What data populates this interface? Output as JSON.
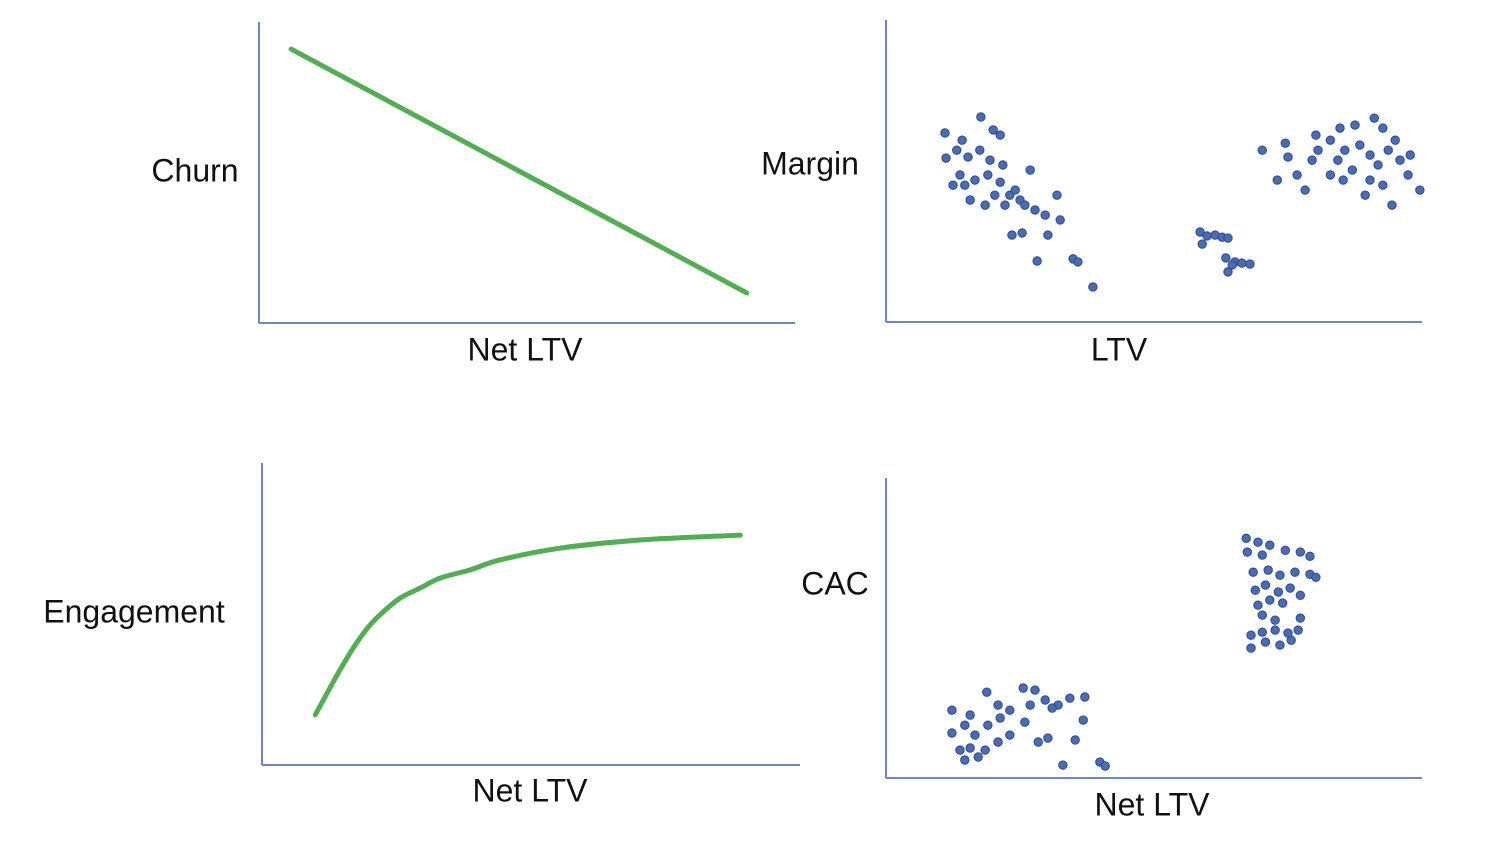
{
  "chart_data": [
    {
      "type": "line",
      "x_label": "Net LTV",
      "y_label": "Churn",
      "color": "#52ae52",
      "xlim": [
        0,
        100
      ],
      "ylim": [
        0,
        100
      ],
      "x": [
        6,
        91
      ],
      "values": [
        91,
        10
      ]
    },
    {
      "type": "scatter",
      "x_label": "LTV",
      "y_label": "Margin",
      "color": "#4a6bb5",
      "xlim": [
        0,
        100
      ],
      "ylim": [
        0,
        100
      ],
      "x": [
        11.0,
        14.2,
        17.7,
        20.0,
        21.3,
        11.2,
        13.2,
        15.3,
        17.5,
        19.4,
        21.8,
        13.8,
        16.6,
        19.0,
        21.3,
        15.7,
        18.5,
        23.1,
        25.0,
        26.9,
        24.1,
        27.8,
        31.9,
        29.7,
        32.5,
        23.5,
        25.4,
        30.2,
        28.2,
        34.9,
        35.8,
        38.6,
        12.5,
        14.7,
        20.3,
        22.2,
        25.9,
        58.6,
        59.9,
        61.4,
        62.7,
        63.8,
        59.0,
        63.4,
        65.1,
        66.4,
        67.9,
        63.8,
        64.6,
        70.2,
        74.5,
        73.0,
        75.0,
        76.7,
        78.2,
        80.2,
        80.6,
        82.9,
        84.7,
        87.5,
        91.1,
        92.7,
        84.3,
        85.6,
        87.0,
        88.4,
        90.3,
        91.8,
        93.7,
        95.0,
        95.9,
        97.8,
        99.6,
        94.4,
        89.4,
        92.7,
        82.9,
        85.3,
        90.3,
        97.4,
        79.5
      ],
      "values": [
        62.6,
        60.2,
        67.9,
        63.6,
        61.9,
        54.3,
        56.9,
        54.6,
        56.9,
        53.6,
        52.0,
        48.7,
        47.0,
        48.7,
        46.3,
        40.4,
        38.7,
        42.0,
        40.4,
        50.3,
        43.7,
        37.1,
        42.0,
        35.4,
        33.8,
        28.8,
        29.5,
        28.8,
        20.2,
        20.9,
        19.9,
        11.6,
        45.3,
        45.3,
        42.0,
        38.7,
        38.7,
        29.8,
        28.5,
        28.8,
        28.1,
        27.8,
        25.8,
        21.2,
        19.9,
        19.5,
        19.2,
        16.6,
        18.9,
        56.9,
        59.2,
        47.0,
        54.6,
        48.7,
        43.7,
        61.9,
        56.9,
        60.2,
        64.2,
        65.2,
        67.5,
        64.2,
        53.6,
        56.9,
        50.3,
        58.6,
        55.3,
        52.0,
        56.9,
        60.2,
        53.6,
        55.3,
        43.7,
        38.7,
        42.0,
        45.3,
        48.7,
        47.0,
        47.0,
        48.7,
        53.6
      ]
    },
    {
      "type": "line",
      "x_label": "Net LTV",
      "y_label": "Engagement",
      "color": "#52ae52",
      "xlim": [
        0,
        100
      ],
      "ylim": [
        0,
        100
      ],
      "x": [
        9.9,
        11.7,
        14.5,
        17.3,
        20.1,
        22.9,
        25.7,
        29.4,
        33.1,
        38.7,
        44.2,
        55.4,
        70.3,
        88.9
      ],
      "values": [
        16.6,
        22.5,
        31.5,
        39.7,
        46.4,
        51.3,
        55.3,
        58.6,
        61.9,
        64.6,
        67.9,
        71.8,
        74.5,
        76.1
      ]
    },
    {
      "type": "scatter",
      "x_label": "Net LTV",
      "y_label": "CAC",
      "color": "#4a6bb5",
      "xlim": [
        0,
        100
      ],
      "ylim": [
        0,
        100
      ],
      "x": [
        12.3,
        15.7,
        18.8,
        20.9,
        23.1,
        25.6,
        27.8,
        29.7,
        32.1,
        34.3,
        37.1,
        36.8,
        12.3,
        14.7,
        16.6,
        19.0,
        21.3,
        23.1,
        25.9,
        13.8,
        15.7,
        18.5,
        20.9,
        14.7,
        17.2,
        28.4,
        30.2,
        35.3,
        33.0,
        39.9,
        40.9,
        31.0,
        26.9,
        67.2,
        69.4,
        71.6,
        67.4,
        70.2,
        74.5,
        77.3,
        79.1,
        68.5,
        71.3,
        73.5,
        76.3,
        79.1,
        80.2,
        68.9,
        70.8,
        73.2,
        75.4,
        77.3,
        69.4,
        71.6,
        74.0,
        70.2,
        72.6,
        77.3,
        68.1,
        70.2,
        72.6,
        75.0,
        76.9,
        68.1,
        70.8,
        73.5,
        75.6
      ],
      "values": [
        22.6,
        21.0,
        28.6,
        24.3,
        22.6,
        30.0,
        29.3,
        26.0,
        24.3,
        26.6,
        27.0,
        19.3,
        15.0,
        17.6,
        14.3,
        17.6,
        20.0,
        14.3,
        18.6,
        9.3,
        10.0,
        9.3,
        12.0,
        6.0,
        7.0,
        12.0,
        13.3,
        12.7,
        4.3,
        5.3,
        4.0,
        23.3,
        24.3,
        79.9,
        78.6,
        77.6,
        75.3,
        74.3,
        75.9,
        75.3,
        73.9,
        68.6,
        69.3,
        67.6,
        68.6,
        67.9,
        66.9,
        62.6,
        64.3,
        62.0,
        63.3,
        60.9,
        57.6,
        59.3,
        58.3,
        54.3,
        52.6,
        53.3,
        47.6,
        48.6,
        49.3,
        48.3,
        49.3,
        43.3,
        45.3,
        44.3,
        45.9
      ]
    }
  ]
}
